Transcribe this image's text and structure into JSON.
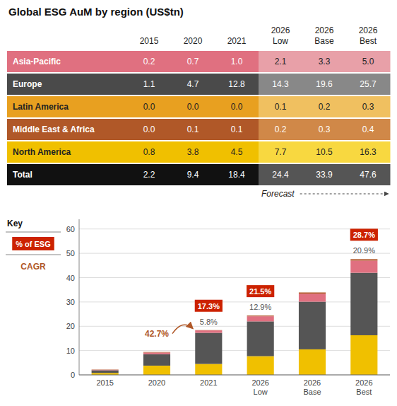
{
  "chart_data": [
    {
      "type": "table",
      "title": "Global ESG AuM by region (US$tn)",
      "categories": [
        "2015",
        "2020",
        "2021",
        "2026\nLow",
        "2026\nBase",
        "2026\nBest"
      ],
      "data_labels": true,
      "series": [
        {
          "name": "Asia-Pacific",
          "values": [
            0.2,
            0.7,
            1.0,
            2.1,
            3.3,
            5.0
          ],
          "value_labels": [
            "0.2",
            "0.7",
            "1.0",
            "2.1",
            "3.3",
            "5.0"
          ],
          "colors": [
            "#e07080",
            "#e07080",
            "#e07080",
            "#e8a0a8",
            "#e8a0a8",
            "#e8a0a8"
          ]
        },
        {
          "name": "Europe",
          "values": [
            1.1,
            4.7,
            12.8,
            14.3,
            19.6,
            25.7
          ],
          "colors": [
            "#4a4a4a",
            "#4a4a4a",
            "#4a4a4a",
            "#888888",
            "#888888",
            "#888888"
          ]
        },
        {
          "name": "Latin America",
          "values": [
            0.0,
            0.0,
            0.0,
            0.1,
            0.2,
            0.3
          ],
          "value_labels": [
            "0.0",
            "0.0",
            "0.0",
            "0.1",
            "0.2",
            "0.3"
          ],
          "colors": [
            "#e8a020",
            "#e8a020",
            "#e8a020",
            "#f0c060",
            "#f0c060",
            "#f0c060"
          ]
        },
        {
          "name": "Middle East & Africa",
          "values": [
            0.0,
            0.1,
            0.1,
            0.2,
            0.3,
            0.4
          ],
          "value_labels": [
            "0.0",
            "0.1",
            "0.1",
            "0.2",
            "0.3",
            "0.4"
          ],
          "colors": [
            "#b05828",
            "#b05828",
            "#b05828",
            "#d08848",
            "#d08848",
            "#d08848"
          ]
        },
        {
          "name": "North America",
          "values": [
            0.8,
            3.8,
            4.5,
            7.7,
            10.5,
            16.3
          ],
          "colors": [
            "#f0c000",
            "#f0c000",
            "#f0c000",
            "#f8d840",
            "#f8d840",
            "#f8d840"
          ]
        },
        {
          "name": "Total",
          "values": [
            2.2,
            9.4,
            18.4,
            24.4,
            33.9,
            47.6
          ],
          "colors": [
            "#111111",
            "#111111",
            "#111111",
            "#555555",
            "#555555",
            "#555555"
          ]
        }
      ],
      "annotations": [
        {
          "text": "Forecast"
        }
      ]
    },
    {
      "type": "bar",
      "stacked": true,
      "categories": [
        "2015",
        "2020",
        "2021",
        "2026\nLow",
        "2026\nBase",
        "2026\nBest"
      ],
      "series": [
        {
          "color": "#f0c000",
          "values": [
            0.8,
            3.8,
            4.5,
            7.7,
            10.5,
            16.3
          ]
        },
        {
          "color": "#555555",
          "values": [
            1.1,
            4.7,
            12.8,
            14.3,
            19.6,
            25.7
          ]
        },
        {
          "color": "#e07080",
          "values": [
            0.2,
            0.7,
            1.0,
            2.1,
            3.3,
            5.0
          ]
        },
        {
          "color": "#b05828",
          "values": [
            0.1,
            0.2,
            0.1,
            0.3,
            0.5,
            0.6
          ]
        }
      ],
      "ylim": [
        0,
        64
      ],
      "yticks": [
        0,
        10,
        20,
        30,
        40,
        50,
        60
      ],
      "grid": true,
      "annotations": [
        {
          "text": "42.7%",
          "category": "2021",
          "color": "#b05828",
          "type": "arrow"
        },
        {
          "text": "5.8%",
          "category": "2021"
        },
        {
          "text": "17.3%",
          "category": "2021",
          "color": "#cc2200",
          "type": "box"
        },
        {
          "text": "12.9%",
          "category": "2026\nLow"
        },
        {
          "text": "21.5%",
          "category": "2026\nLow",
          "color": "#cc2200",
          "type": "box"
        },
        {
          "text": "20.9%",
          "category": "2026\nBest"
        },
        {
          "text": "28.7%",
          "category": "2026\nBest",
          "color": "#cc2200",
          "type": "box"
        }
      ],
      "key": {
        "title": "Key",
        "items": [
          {
            "text": "% of ESG",
            "color": "#cc2200",
            "type": "box"
          },
          {
            "text": "CAGR",
            "color": "#b05828",
            "type": "text"
          }
        ]
      }
    }
  ]
}
